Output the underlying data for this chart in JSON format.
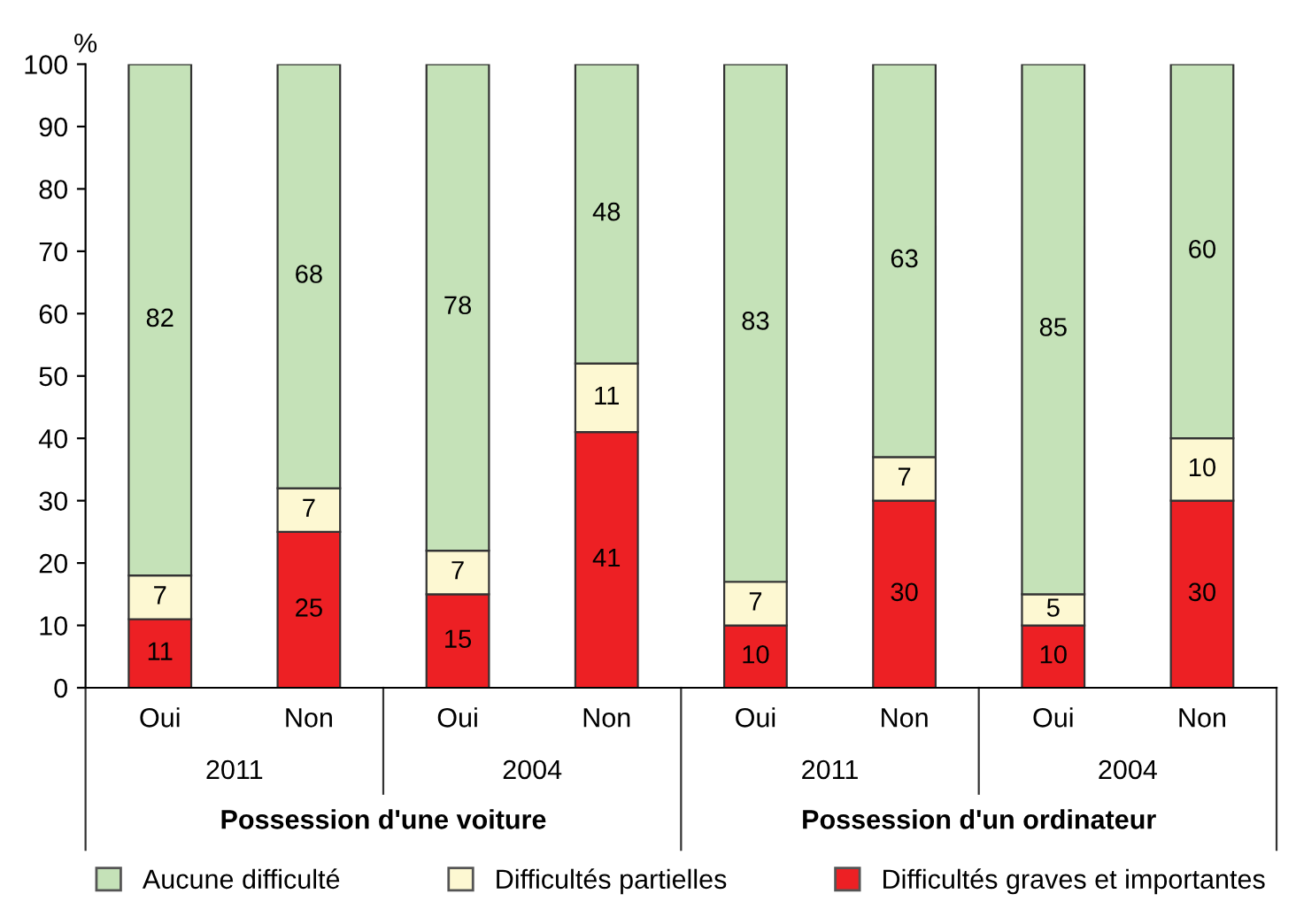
{
  "chart_data": {
    "type": "bar",
    "stacked": true,
    "ylabel": "%",
    "categories": [
      "Oui",
      "Non",
      "Oui",
      "Non",
      "Oui",
      "Non",
      "Oui",
      "Non"
    ],
    "series": [
      {
        "name": "Difficultés graves et importantes",
        "color": "#ed2024",
        "values": [
          11,
          25,
          15,
          41,
          10,
          30,
          10,
          30
        ]
      },
      {
        "name": "Difficultés partielles",
        "color": "#fdf8d2",
        "values": [
          7,
          7,
          7,
          11,
          7,
          7,
          5,
          10
        ]
      },
      {
        "name": "Aucune difficulté",
        "color": "#c5e2b8",
        "values": [
          82,
          68,
          78,
          48,
          83,
          63,
          85,
          60
        ]
      }
    ],
    "annotations": [
      "2011",
      "2004",
      "2011",
      "2004",
      "Possession d'une voiture",
      "Possession d'un ordinateur"
    ],
    "ylim": [
      0,
      100
    ],
    "yticks": [
      0,
      10,
      20,
      30,
      40,
      50,
      60,
      70,
      80,
      90,
      100
    ],
    "grid": false,
    "legend": "bottom",
    "data_labels": true
  }
}
